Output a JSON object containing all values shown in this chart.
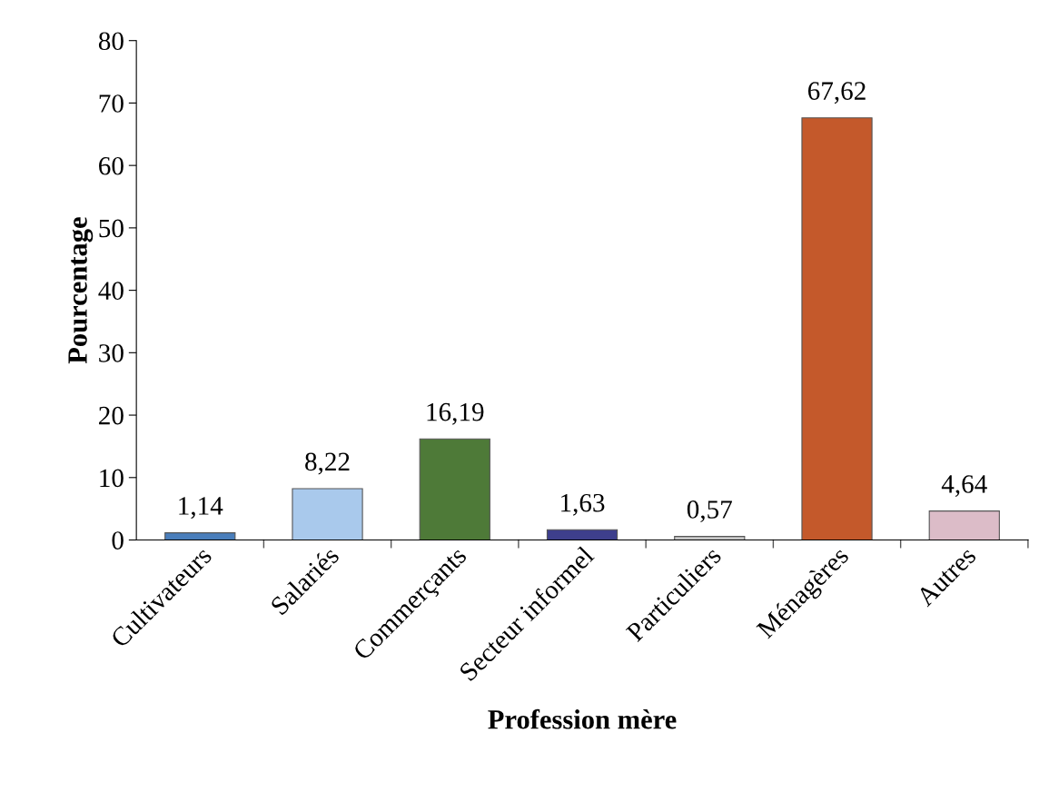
{
  "chart_data": {
    "type": "bar",
    "xlabel": "Profession mère",
    "ylabel": "Pourcentage",
    "categories": [
      "Cultivateurs",
      "Salariés",
      "Commerçants",
      "Secteur informel",
      "Particuliers",
      "Ménagères",
      "Autres"
    ],
    "values": [
      1.14,
      8.22,
      16.19,
      1.63,
      0.57,
      67.62,
      4.64
    ],
    "colors": [
      "#4a7ebb",
      "#a9c9ec",
      "#4e7a38",
      "#3e3f8c",
      "#c8c8c8",
      "#c4592b",
      "#dcbcc8"
    ],
    "value_labels": [
      "1,14",
      "8,22",
      "16,19",
      "1,63",
      "0,57",
      "67,62",
      "4,64"
    ],
    "ylim": [
      0,
      80
    ],
    "yticks": [
      0,
      10,
      20,
      30,
      40,
      50,
      60,
      70,
      80
    ],
    "grid": false,
    "legend": false
  }
}
